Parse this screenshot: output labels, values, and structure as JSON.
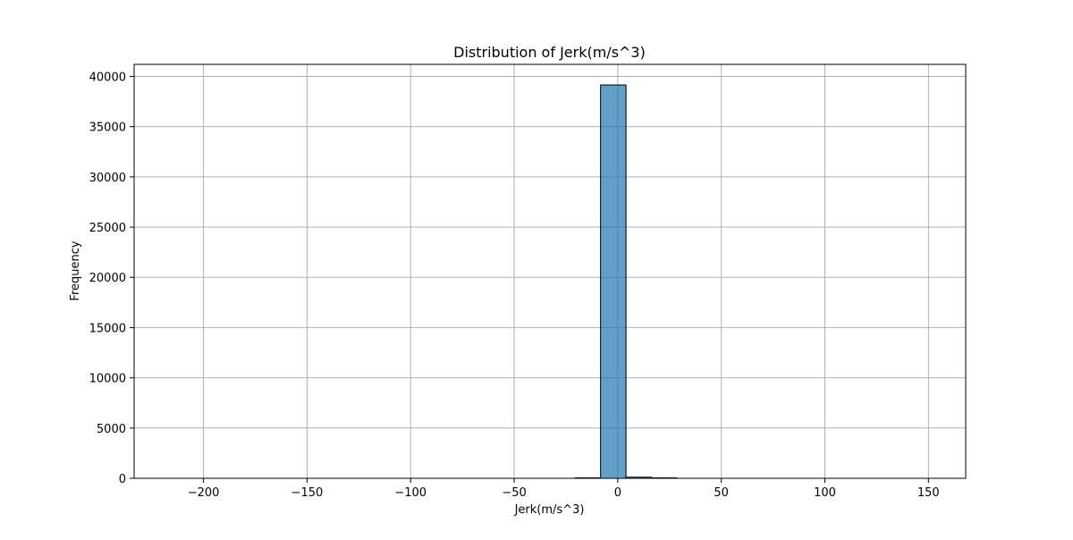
{
  "chart_data": {
    "type": "bar",
    "title": "Distribution of Jerk(m/s^3)",
    "xlabel": "Jerk(m/s^3)",
    "ylabel": "Frequency",
    "xlim": [
      -233.5,
      168.0
    ],
    "ylim": [
      0,
      41200
    ],
    "x_ticks": [
      -200,
      -150,
      -100,
      -50,
      0,
      50,
      100,
      150
    ],
    "x_tick_labels": [
      "−200",
      "−150",
      "−100",
      "−50",
      "0",
      "50",
      "100",
      "150"
    ],
    "y_ticks": [
      0,
      5000,
      10000,
      15000,
      20000,
      25000,
      30000,
      35000,
      40000
    ],
    "y_tick_labels": [
      "0",
      "5000",
      "10000",
      "15000",
      "20000",
      "25000",
      "30000",
      "35000",
      "40000"
    ],
    "grid": true,
    "bar_color": "#1f77b4",
    "bar_opacity": 0.7,
    "edge_color": "#000000",
    "bins": [
      {
        "x0": -8.3,
        "x1": 4.0,
        "count": 39150
      },
      {
        "x0": 4.0,
        "x1": 16.3,
        "count": 110
      },
      {
        "x0": 16.3,
        "x1": 28.6,
        "count": 15
      },
      {
        "x0": -20.6,
        "x1": -8.3,
        "count": 10
      }
    ]
  }
}
